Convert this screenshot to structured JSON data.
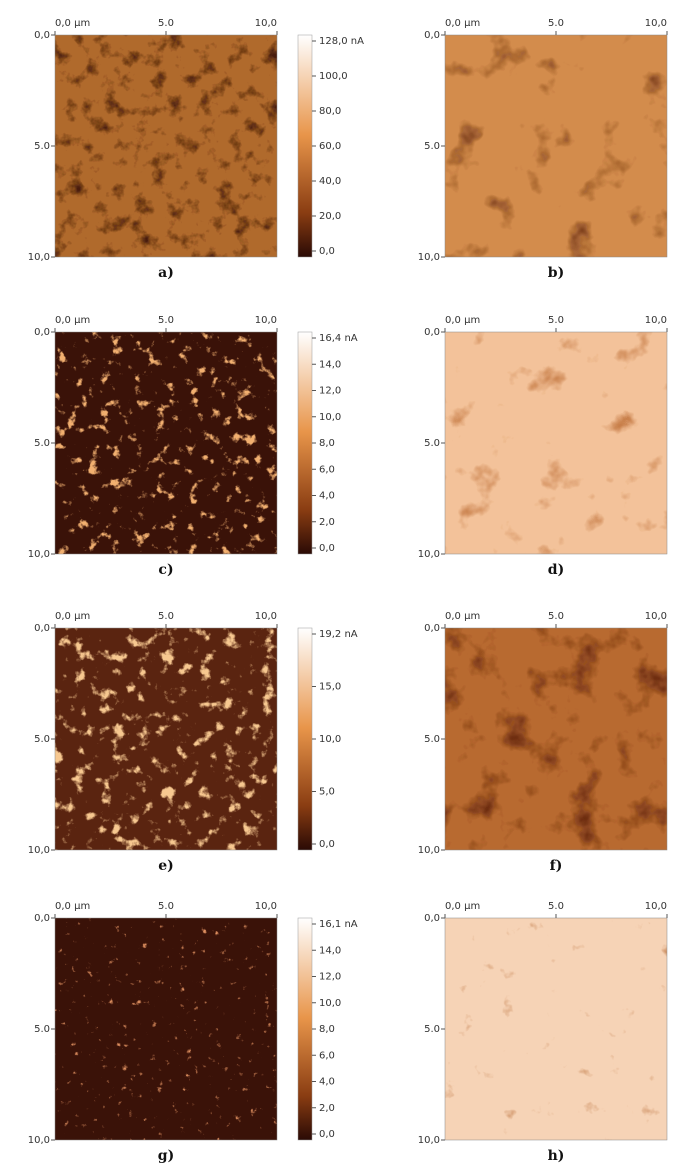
{
  "panels": [
    {
      "label": "a)",
      "x_labels": [
        "0,0 µm",
        "5.0",
        "10,0"
      ],
      "y_labels": [
        "0,0",
        "5.0",
        "10,0"
      ],
      "colorbar": [
        "128,0 nA",
        "100,0",
        "80,0",
        "60,0",
        "40,0",
        "20,0",
        "0,0"
      ]
    },
    {
      "label": "b)",
      "x_labels": [
        "0,0 µm",
        "5.0",
        "10,0"
      ],
      "y_labels": [
        "0,0",
        "5.0",
        "10,0"
      ]
    },
    {
      "label": "c)",
      "x_labels": [
        "0,0 µm",
        "5.0",
        "10,0"
      ],
      "y_labels": [
        "0,0",
        "5.0",
        "10,0"
      ],
      "colorbar": [
        "16,4 nA",
        "14,0",
        "12,0",
        "10,0",
        "8,0",
        "6,0",
        "4,0",
        "2,0",
        "0,0"
      ]
    },
    {
      "label": "d)",
      "x_labels": [
        "0,0 µm",
        "5.0",
        "10,0"
      ],
      "y_labels": [
        "0,0",
        "5.0",
        "10,0"
      ]
    },
    {
      "label": "e)",
      "x_labels": [
        "0,0 µm",
        "5.0",
        "10,0"
      ],
      "y_labels": [
        "0,0",
        "5.0",
        "10,0"
      ],
      "colorbar": [
        "19,2 nA",
        "15,0",
        "10,0",
        "5,0",
        "0,0"
      ]
    },
    {
      "label": "f)",
      "x_labels": [
        "0,0 µm",
        "5.0",
        "10,0"
      ],
      "y_labels": [
        "0,0",
        "5.0",
        "10,0"
      ]
    },
    {
      "label": "g)",
      "x_labels": [
        "0,0 µm",
        "5.0",
        "10,0"
      ],
      "y_labels": [
        "0,0",
        "5.0",
        "10,0"
      ],
      "colorbar": [
        "16,1 nA",
        "14,0",
        "12,0",
        "10,0",
        "8,0",
        "6,0",
        "4,0",
        "2,0",
        "0,0"
      ]
    },
    {
      "label": "h)",
      "x_labels": [
        "0,0 µm",
        "5.0",
        "10,0"
      ],
      "y_labels": [
        "0,0",
        "5.0",
        "10,0"
      ]
    }
  ]
}
